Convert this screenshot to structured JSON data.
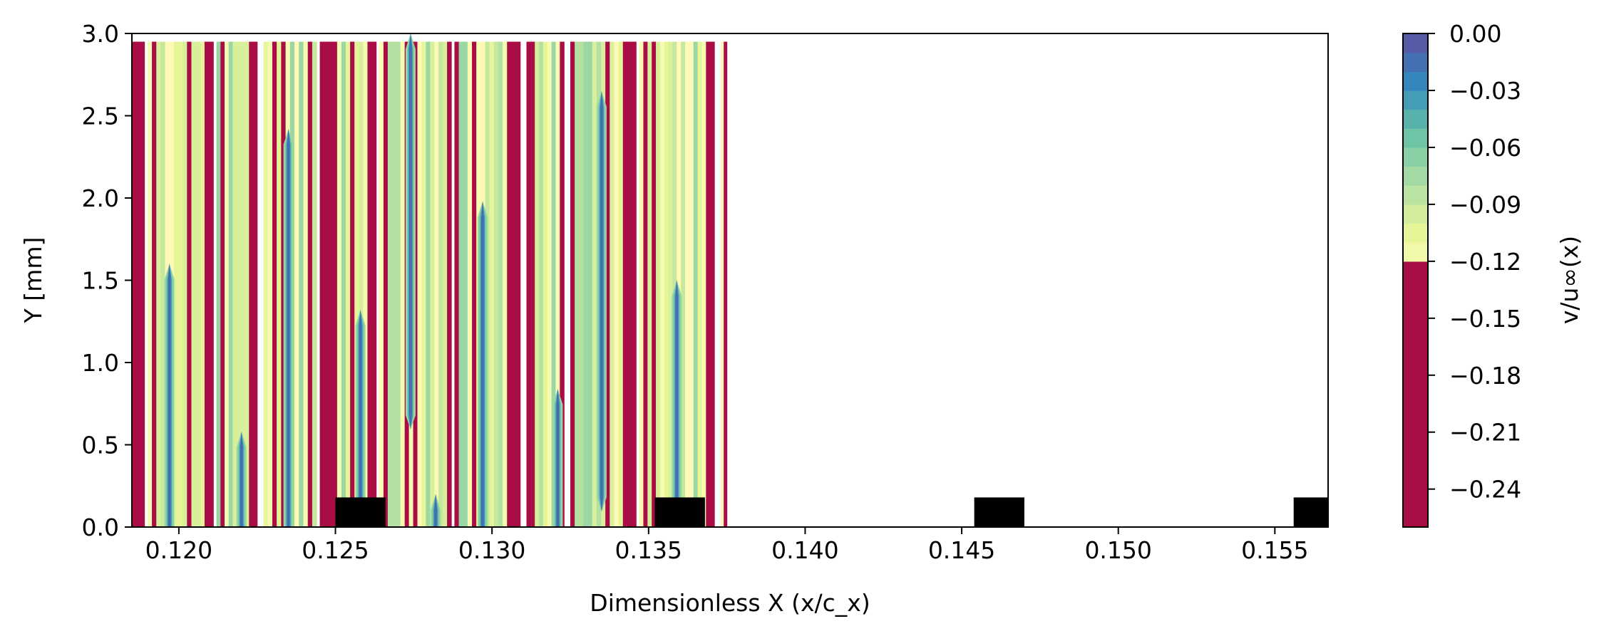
{
  "chart_data": {
    "type": "heatmap",
    "title": "",
    "xlabel": "Dimensionless X (x/c_x)",
    "ylabel": "Y [mm]",
    "xlim": [
      0.1185,
      0.1567
    ],
    "ylim": [
      0,
      3.0
    ],
    "x_ticks": [
      "0.120",
      "0.125",
      "0.130",
      "0.135",
      "0.140",
      "0.145",
      "0.150",
      "0.155"
    ],
    "x_tick_values": [
      0.12,
      0.125,
      0.13,
      0.135,
      0.14,
      0.145,
      0.15,
      0.155
    ],
    "y_ticks": [
      "0.0",
      "0.5",
      "1.0",
      "1.5",
      "2.0",
      "2.5",
      "3.0"
    ],
    "y_tick_values": [
      0.0,
      0.5,
      1.0,
      1.5,
      2.0,
      2.5,
      3.0
    ],
    "colorbar": {
      "label": "v/u∞(x)",
      "colormap": "Spectral",
      "range": [
        -0.26,
        0.0
      ],
      "ticks": [
        "0.00",
        "−0.03",
        "−0.06",
        "−0.09",
        "−0.12",
        "−0.15",
        "−0.18",
        "−0.21",
        "−0.24"
      ],
      "tick_values": [
        0.0,
        -0.03,
        -0.06,
        -0.09,
        -0.12,
        -0.15,
        -0.18,
        -0.21,
        -0.24
      ]
    },
    "field_top_y": 2.95,
    "data_segments": [
      [
        0.1185,
        0.1189
      ],
      [
        0.119,
        0.1211
      ],
      [
        0.1212,
        0.1225
      ],
      [
        0.1227,
        0.1244
      ],
      [
        0.1245,
        0.1263
      ],
      [
        0.1264,
        0.1287
      ],
      [
        0.1288,
        0.1309
      ],
      [
        0.1311,
        0.1323
      ],
      [
        0.1325,
        0.1346
      ],
      [
        0.1347,
        0.1371
      ],
      [
        0.1373,
        0.1375
      ]
    ],
    "spikes": [
      {
        "x": 0.1197,
        "y_max": 1.6
      },
      {
        "x": 0.122,
        "y_max": 0.58
      },
      {
        "x": 0.1235,
        "y_max": 2.42
      },
      {
        "x": 0.1258,
        "y_max": 1.32
      },
      {
        "x": 0.1274,
        "y_min": 0.68,
        "y_max": 3.0
      },
      {
        "x": 0.1282,
        "y_max": 0.2
      },
      {
        "x": 0.1297,
        "y_max": 1.98
      },
      {
        "x": 0.1321,
        "y_max": 0.84
      },
      {
        "x": 0.1335,
        "y_min": 0.18,
        "y_max": 2.65
      },
      {
        "x": 0.1359,
        "y_max": 1.5
      }
    ],
    "roughness_elements": [
      {
        "x_start": 0.125,
        "x_end": 0.1266,
        "height": 0.18
      },
      {
        "x_start": 0.1352,
        "x_end": 0.1368,
        "height": 0.18
      },
      {
        "x_start": 0.1454,
        "x_end": 0.147,
        "height": 0.18
      },
      {
        "x_start": 0.1556,
        "x_end": 0.1567,
        "height": 0.18
      }
    ]
  }
}
